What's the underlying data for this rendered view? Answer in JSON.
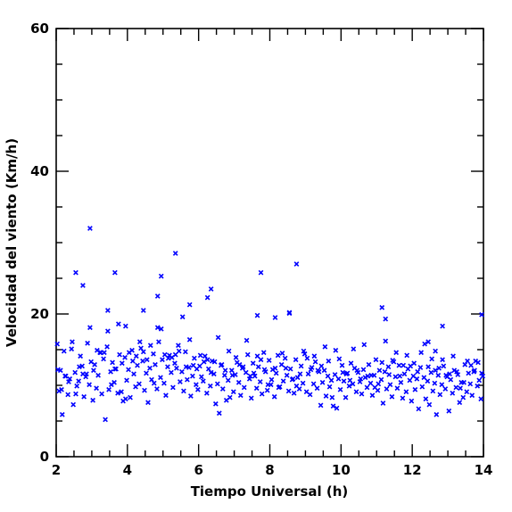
{
  "chart_data": {
    "type": "scatter",
    "xlabel": "Tiempo Universal (h)",
    "ylabel": "Velocidad del viento (Km/h)",
    "xlim": [
      2,
      14
    ],
    "ylim": [
      0,
      60
    ],
    "x_ticks": [
      "2",
      "4",
      "6",
      "8",
      "10",
      "12",
      "14"
    ],
    "y_ticks": [
      "0",
      "20",
      "40",
      "60"
    ],
    "grid": false,
    "marker": "x",
    "color": "#0000ff",
    "series": [
      {
        "x": [
          2.03,
          2.08,
          2.12,
          2.17,
          2.22,
          2.27,
          2.33,
          2.38,
          2.43,
          2.48,
          2.53,
          2.58,
          2.63,
          2.68,
          2.73,
          2.78,
          2.83,
          2.88,
          2.93,
          2.98,
          3.03,
          3.08,
          3.13,
          3.18,
          3.23,
          3.28,
          3.33,
          3.38,
          3.43,
          3.48,
          3.53,
          3.58,
          3.63,
          3.68,
          3.73,
          3.78,
          3.83,
          3.88,
          3.93,
          3.98,
          4.03,
          4.08,
          4.13,
          4.18,
          4.23,
          4.28,
          4.33,
          4.38,
          4.43,
          4.48,
          4.53,
          4.58,
          4.63,
          4.68,
          4.73,
          4.78,
          4.83,
          4.88,
          4.93,
          4.98,
          5.03,
          5.08,
          5.13,
          5.18,
          5.23,
          5.28,
          5.33,
          5.38,
          5.43,
          5.48,
          5.53,
          5.58,
          5.63,
          5.68,
          5.73,
          5.78,
          5.83,
          5.88,
          5.93,
          5.98,
          6.03,
          6.08,
          6.13,
          6.18,
          6.23,
          6.28,
          6.33,
          6.38,
          6.43,
          6.48,
          6.53,
          6.58,
          6.63,
          6.68,
          6.73,
          6.78,
          6.83,
          6.88,
          6.93,
          6.98,
          7.03,
          7.08,
          7.13,
          7.18,
          7.23,
          7.28,
          7.33,
          7.38,
          7.43,
          7.48,
          7.53,
          7.58,
          7.63,
          7.68,
          7.73,
          7.78,
          7.83,
          7.88,
          7.93,
          7.98,
          8.03,
          8.08,
          8.13,
          8.18,
          8.23,
          8.28,
          8.33,
          8.38,
          8.43,
          8.48,
          8.53,
          8.58,
          8.63,
          8.68,
          8.73,
          8.78,
          8.83,
          8.88,
          8.93,
          8.98,
          9.03,
          9.08,
          9.13,
          9.18,
          9.23,
          9.28,
          9.33,
          9.38,
          9.43,
          9.48,
          9.53,
          9.58,
          9.63,
          9.68,
          9.73,
          9.78,
          9.83,
          9.88,
          9.93,
          9.98,
          10.03,
          10.08,
          10.13,
          10.18,
          10.23,
          10.28,
          10.33,
          10.38,
          10.43,
          10.48,
          10.53,
          10.58,
          10.63,
          10.68,
          10.73,
          10.78,
          10.83,
          10.88,
          10.93,
          10.98,
          11.03,
          11.08,
          11.13,
          11.18,
          11.23,
          11.28,
          11.33,
          11.38,
          11.43,
          11.48,
          11.53,
          11.58,
          11.63,
          11.68,
          11.73,
          11.78,
          11.83,
          11.88,
          11.93,
          11.98,
          12.03,
          12.08,
          12.13,
          12.18,
          12.23,
          12.28,
          12.33,
          12.38,
          12.43,
          12.48,
          12.53,
          12.58,
          12.63,
          12.68,
          12.73,
          12.78,
          12.83,
          12.88,
          12.93,
          12.98,
          13.03,
          13.08,
          13.13,
          13.18,
          13.23,
          13.28,
          13.33,
          13.38,
          13.43,
          13.48,
          13.53,
          13.58,
          13.63,
          13.68,
          13.73,
          13.78,
          13.83,
          13.88,
          13.93,
          13.98,
          2.05,
          2.15,
          2.35,
          2.55,
          2.75,
          2.95,
          3.15,
          3.35,
          3.55,
          3.75,
          3.95,
          4.15,
          4.35,
          4.55,
          4.75,
          4.95,
          5.15,
          5.35,
          5.55,
          5.75,
          5.95,
          6.15,
          6.35,
          6.55,
          6.75,
          6.95,
          7.15,
          7.35,
          7.55,
          7.75,
          7.95,
          8.15,
          8.35,
          8.55,
          8.75,
          8.95,
          9.15,
          9.35,
          9.55,
          9.75,
          9.95,
          10.15,
          10.35,
          10.55,
          10.75,
          10.95,
          11.15,
          11.35,
          11.55,
          11.75,
          11.95,
          12.15,
          12.35,
          12.55,
          12.75,
          12.95,
          13.15,
          13.35,
          13.55,
          13.75,
          13.95,
          2.25,
          2.45,
          2.65,
          2.85,
          3.05,
          3.25,
          3.45,
          3.65,
          3.85,
          4.05,
          4.25,
          4.45,
          4.65,
          4.85,
          5.05,
          5.25,
          5.45,
          5.65,
          5.85,
          6.05,
          6.25,
          6.45,
          6.65,
          6.85,
          7.05,
          7.25,
          7.45,
          7.65,
          7.85,
          8.05,
          8.25,
          8.45,
          8.65,
          8.85,
          9.05,
          9.25,
          9.45,
          9.65,
          9.85,
          10.05,
          10.25,
          10.45,
          10.65,
          10.85,
          11.05,
          11.25,
          11.45,
          11.65,
          11.85,
          12.05,
          12.25,
          12.45,
          12.65,
          12.85,
          13.05,
          13.25,
          13.45,
          13.65,
          13.85,
          2.95,
          3.65,
          5.35,
          4.95,
          5.75,
          6.25,
          6.35,
          7.75,
          8.75,
          2.55,
          2.75,
          3.45,
          3.95,
          4.45,
          4.85,
          7.65,
          8.15,
          8.55,
          11.15,
          11.25,
          13.95,
          12.45,
          12.65,
          12.85
        ],
        "y": [
          15.8,
          9.2,
          12.1,
          5.9,
          14.8,
          11.3,
          8.7,
          10.9,
          15.1,
          7.3,
          11.8,
          9.9,
          10.6,
          14.1,
          12.7,
          8.4,
          11.2,
          15.9,
          10.1,
          13.3,
          7.9,
          12.9,
          9.6,
          11.4,
          14.6,
          8.8,
          13.7,
          5.2,
          15.4,
          9.4,
          11.9,
          13.2,
          10.4,
          12.3,
          8.9,
          14.3,
          9.1,
          7.8,
          13.9,
          10.7,
          12.2,
          8.3,
          14.9,
          11.6,
          9.8,
          12.8,
          10.2,
          15.2,
          13.4,
          9.3,
          11.7,
          7.6,
          12.4,
          10.8,
          14.4,
          12.9,
          9.5,
          16.1,
          11.1,
          13.6,
          10.3,
          8.6,
          12.6,
          14.2,
          11.8,
          9.7,
          13.1,
          12.4,
          15.6,
          10.5,
          11.9,
          9.2,
          14.7,
          10.8,
          12.5,
          8.5,
          11.3,
          13.8,
          10.1,
          9.4,
          12.7,
          11.2,
          10.6,
          14.1,
          8.9,
          12.3,
          9.9,
          13.4,
          11.6,
          7.4,
          10.2,
          6.1,
          12.8,
          9.5,
          11.4,
          7.9,
          10.7,
          8.3,
          12.1,
          9.1,
          11.5,
          13.2,
          10.4,
          8.6,
          12.4,
          9.7,
          11.8,
          14.3,
          10.9,
          8.2,
          13.1,
          11.3,
          9.6,
          12.6,
          10.5,
          8.8,
          14.6,
          11.9,
          9.3,
          13.5,
          10.1,
          12.2,
          8.4,
          11.7,
          14.2,
          9.8,
          12.9,
          10.6,
          13.8,
          11.4,
          9.2,
          12.3,
          10.8,
          8.9,
          13.6,
          11.1,
          9.5,
          12.7,
          10.3,
          14.4,
          9.1,
          11.6,
          8.7,
          12.5,
          10.2,
          13.3,
          9.6,
          11.9,
          7.2,
          10.4,
          12.1,
          8.5,
          11.3,
          9.8,
          10.7,
          7.1,
          11.5,
          6.8,
          10.9,
          9.4,
          12.8,
          10.6,
          8.3,
          11.7,
          9.9,
          13.1,
          10.2,
          12.4,
          9.1,
          11.8,
          10.5,
          8.8,
          12.2,
          11.1,
          9.7,
          12.9,
          10.3,
          8.6,
          11.4,
          13.6,
          9.3,
          12.1,
          10.8,
          7.5,
          11.9,
          9.5,
          12.6,
          10.1,
          8.4,
          13.3,
          11.2,
          9.6,
          12.8,
          10.4,
          8.2,
          11.6,
          9.1,
          12.3,
          10.7,
          7.8,
          11.3,
          9.4,
          10.9,
          6.7,
          12.5,
          9.8,
          11.1,
          8.1,
          10.6,
          7.3,
          11.8,
          9.2,
          10.3,
          5.9,
          11.4,
          8.7,
          10.1,
          12.7,
          9.5,
          11.2,
          6.4,
          10.8,
          8.9,
          12.1,
          9.7,
          11.5,
          7.6,
          10.4,
          8.3,
          12.9,
          9.1,
          11.7,
          10.2,
          8.6,
          11.9,
          13.4,
          9.9,
          10.7,
          8.1,
          11.3,
          12.2,
          9.4,
          10.5,
          8.8,
          11.6,
          18.1,
          14.9,
          14.6,
          10.1,
          18.6,
          8.1,
          13.4,
          16.1,
          13.6,
          10.3,
          17.9,
          13.8,
          14.3,
          19.6,
          16.4,
          12.3,
          13.3,
          11.8,
          16.7,
          12.1,
          11.4,
          12.9,
          16.3,
          11.7,
          13.6,
          10.1,
          12.4,
          14.5,
          20.1,
          9.9,
          14.8,
          12.2,
          12.1,
          15.4,
          8.3,
          13.7,
          11.6,
          15.1,
          10.9,
          11.3,
          9.7,
          13.2,
          11.5,
          14.6,
          12.8,
          12.7,
          11.9,
          15.8,
          13.7,
          12.4,
          11.4,
          14.1,
          9.6,
          13.4,
          12.1,
          11.7,
          11.3,
          16.1,
          12.6,
          11.6,
          12.1,
          14.6,
          17.6,
          12.3,
          13.1,
          14.6,
          14.1,
          14.7,
          15.6,
          18.1,
          14.3,
          13.9,
          14.8,
          12.6,
          12.8,
          14.2,
          13.6,
          13.3,
          12.9,
          14.8,
          13.9,
          12.6,
          11.3,
          14.1,
          12.2,
          10.8,
          9.7,
          12.4,
          10.9,
          11.6,
          13.8,
          14.1,
          12.7,
          13.4,
          14.9,
          11.8,
          10.7,
          12.1,
          15.7,
          11.4,
          10.2,
          16.2,
          13.5,
          11.3,
          14.2,
          13.1,
          14.6,
          12.6,
          12.1,
          13.6,
          11.6,
          11.9,
          10.4,
          12.8,
          13.2,
          32.0,
          25.8,
          28.5,
          25.3,
          21.3,
          22.3,
          23.5,
          25.8,
          27.0,
          25.8,
          24.0,
          20.5,
          18.3,
          20.5,
          22.5,
          19.8,
          19.5,
          20.2,
          20.9,
          19.3,
          19.9,
          16.1,
          14.8,
          18.3
        ]
      }
    ]
  }
}
